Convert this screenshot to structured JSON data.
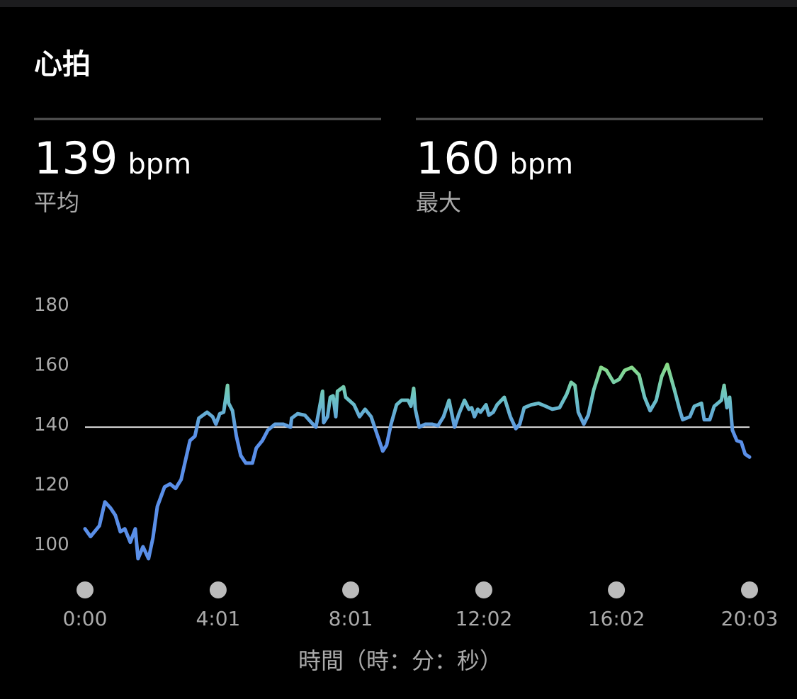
{
  "title": "心拍",
  "stats": [
    {
      "value": 139,
      "unit": "bpm",
      "label": "平均"
    },
    {
      "value": 160,
      "unit": "bpm",
      "label": "最大"
    }
  ],
  "chart_data": {
    "type": "line",
    "x_label": "時間（時：分：秒）",
    "xlim": [
      0,
      1203
    ],
    "xticks": [
      {
        "value": 0,
        "label": "0:00"
      },
      {
        "value": 241,
        "label": "4:01"
      },
      {
        "value": 481,
        "label": "8:01"
      },
      {
        "value": 722,
        "label": "12:02"
      },
      {
        "value": 962,
        "label": "16:02"
      },
      {
        "value": 1203,
        "label": "20:03"
      }
    ],
    "ylim": [
      90,
      185
    ],
    "yticks": [
      100,
      120,
      140,
      160,
      180
    ],
    "line_gradient": [
      "#8ee07a",
      "#6cc3c4",
      "#5a8fe8"
    ],
    "x": [
      0,
      10,
      26,
      36,
      46,
      55,
      64,
      72,
      82,
      91,
      96,
      105,
      115,
      123,
      131,
      144,
      154,
      164,
      174,
      182,
      190,
      199,
      206,
      221,
      231,
      237,
      244,
      251,
      258,
      260,
      267,
      274,
      282,
      291,
      303,
      310,
      321,
      331,
      344,
      359,
      372,
      374,
      385,
      398,
      410,
      418,
      430,
      432,
      439,
      444,
      449,
      454,
      457,
      468,
      472,
      487,
      497,
      507,
      518,
      528,
      539,
      546,
      554,
      564,
      573,
      585,
      590,
      595,
      598,
      605,
      616,
      628,
      639,
      649,
      659,
      669,
      677,
      687,
      695,
      700,
      705,
      711,
      716,
      726,
      731,
      739,
      746,
      759,
      770,
      780,
      787,
      795,
      808,
      821,
      834,
      846,
      859,
      872,
      880,
      887,
      893,
      903,
      911,
      921,
      934,
      944,
      957,
      967,
      977,
      990,
      1003,
      1013,
      1023,
      1034,
      1044,
      1054,
      1067,
      1077,
      1082,
      1095,
      1103,
      1116,
      1121,
      1131,
      1139,
      1152,
      1157,
      1162,
      1167,
      1172,
      1180,
      1188,
      1195,
      1203
    ],
    "values": [
      105,
      102.4,
      106,
      114,
      112,
      109.5,
      104,
      105,
      100.5,
      105,
      95,
      99,
      95,
      102,
      112.5,
      119,
      120,
      118.5,
      121.5,
      128,
      134.5,
      136,
      142,
      144,
      142.5,
      140,
      143.5,
      144,
      153,
      147,
      144.5,
      136,
      129.5,
      127,
      127,
      132,
      134.5,
      138,
      140,
      140,
      139,
      142,
      143.5,
      143,
      140.5,
      139,
      151,
      140.5,
      142.5,
      149,
      149.5,
      142.5,
      151,
      152.5,
      149,
      146.5,
      142.5,
      145,
      142.5,
      137,
      131,
      133,
      140,
      146.5,
      148,
      148,
      146,
      152,
      145,
      139,
      140,
      140,
      139.5,
      142.5,
      148,
      139,
      143.5,
      148,
      145,
      145.5,
      142.5,
      145,
      144,
      146.5,
      143,
      144,
      146.5,
      149,
      142.5,
      138.5,
      140,
      145.5,
      146.5,
      147,
      146,
      145,
      145.5,
      150,
      154,
      153,
      144,
      140,
      143,
      151.5,
      159,
      158,
      154,
      155,
      158,
      159,
      156.5,
      149,
      144.5,
      148,
      156,
      160,
      151.5,
      144.5,
      141.5,
      142.5,
      146,
      147,
      141.5,
      141.5,
      146,
      148,
      153,
      145.5,
      149,
      138,
      134.5,
      134,
      130,
      129
    ]
  }
}
